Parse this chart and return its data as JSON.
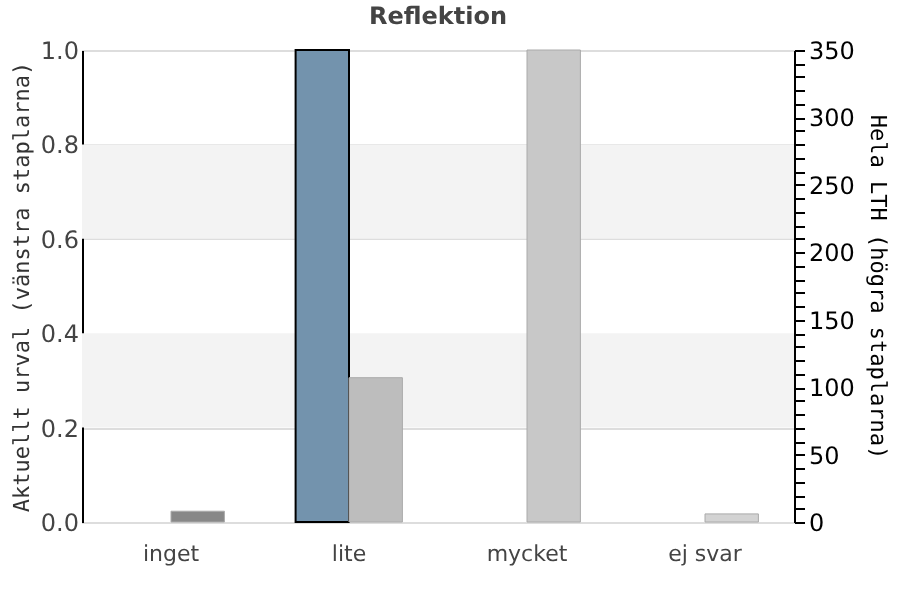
{
  "chart_data": {
    "type": "bar",
    "title": "Reflektion",
    "ylabel": "Aktuellt urval (vänstra staplarna)",
    "y2label": "Hela LTH (högra staplarna)",
    "categories": [
      "inget",
      "lite",
      "mycket",
      "ej svar"
    ],
    "series": [
      {
        "color": "#7393ad",
        "values": [
          0,
          1,
          0,
          0
        ],
        "axis": "y"
      },
      {
        "colors": [
          "#888888",
          "#bdbdbd",
          "#c8c8c8",
          "#d3d3d3"
        ],
        "values": [
          8,
          107,
          350,
          6
        ],
        "axis": "y2"
      }
    ],
    "ylim": [
      0,
      1
    ],
    "yticks": [
      {
        "value": 0,
        "label": "0.0"
      },
      0.2,
      0.4,
      0.6,
      0.8,
      {
        "value": 1,
        "label": "1.0"
      }
    ],
    "y2lim": [
      0,
      350
    ],
    "y2ticks": [
      0,
      {
        "value": 10,
        "label": null
      },
      {
        "value": 20,
        "label": null
      },
      {
        "value": 30,
        "label": null
      },
      {
        "value": 40,
        "label": null
      },
      50,
      {
        "value": 60,
        "label": null
      },
      {
        "value": 70,
        "label": null
      },
      {
        "value": 80,
        "label": null
      },
      {
        "value": 90,
        "label": null
      },
      100,
      {
        "value": 110,
        "label": null
      },
      {
        "value": 120,
        "label": null
      },
      {
        "value": 130,
        "label": null
      },
      {
        "value": 140,
        "label": null
      },
      150,
      {
        "value": 160,
        "label": null
      },
      {
        "value": 170,
        "label": null
      },
      {
        "value": 180,
        "label": null
      },
      {
        "value": 190,
        "label": null
      },
      200,
      {
        "value": 210,
        "label": null
      },
      {
        "value": 220,
        "label": null
      },
      {
        "value": 230,
        "label": null
      },
      {
        "value": 240,
        "label": null
      },
      250,
      {
        "value": 260,
        "label": null
      },
      {
        "value": 270,
        "label": null
      },
      {
        "value": 280,
        "label": null
      },
      {
        "value": 290,
        "label": null
      },
      300,
      {
        "value": 310,
        "label": null
      },
      {
        "value": 320,
        "label": null
      },
      {
        "value": 330,
        "label": null
      },
      {
        "value": 340,
        "label": null
      },
      350
    ],
    "bands": [
      {
        "axis": "y",
        "from": 0.2,
        "to": 0.4,
        "color": "#f3f3f3"
      },
      {
        "axis": "y",
        "from": 0.6,
        "to": 0.8,
        "color": "#f3f3f3"
      }
    ],
    "grid": "y"
  }
}
